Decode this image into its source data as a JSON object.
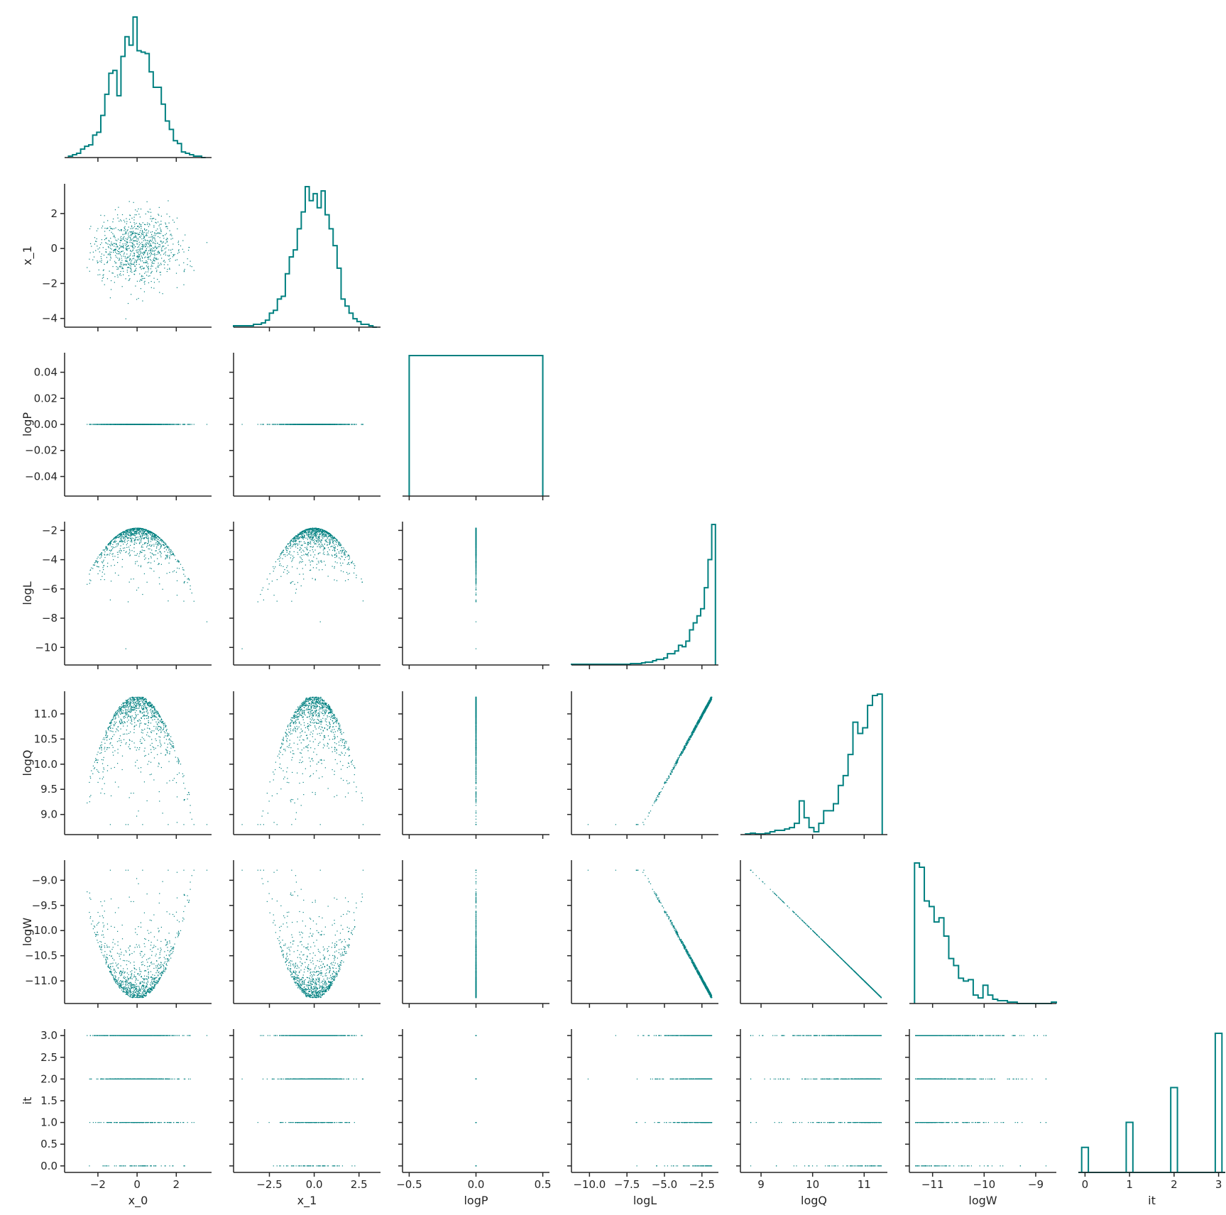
{
  "colors": {
    "accent": "#008080",
    "axis": "#262626",
    "background": "#ffffff"
  },
  "chart_data": {
    "type": "scatter",
    "layout": "corner-plot",
    "variables": [
      "x_0",
      "x_1",
      "logP",
      "logL",
      "logQ",
      "logW",
      "it"
    ],
    "axes": {
      "x_0": {
        "lim": [
          -3.7,
          3.8
        ],
        "ticks": [
          -2,
          0,
          2
        ],
        "tick_labels": [
          "−2",
          "0",
          "2"
        ]
      },
      "x_1": {
        "lim": [
          -4.5,
          3.7
        ],
        "ticks": [
          -4,
          -2,
          0,
          2
        ],
        "tick_labels": [
          "−4",
          "−2",
          "0",
          "2"
        ],
        "bottom_ticks": [
          -2.5,
          0.0,
          2.5
        ],
        "bottom_tick_labels": [
          "−2.5",
          "0.0",
          "2.5"
        ]
      },
      "logP": {
        "lim": [
          -0.055,
          0.055
        ],
        "ticks": [
          -0.04,
          -0.02,
          0.0,
          0.02,
          0.04
        ],
        "tick_labels": [
          "−0.04",
          "−0.02",
          "0.00",
          "0.02",
          "0.04"
        ],
        "bottom_lim": [
          -0.55,
          0.55
        ],
        "bottom_ticks": [
          -0.5,
          0.0,
          0.5
        ],
        "bottom_tick_labels": [
          "−0.5",
          "0.0",
          "0.5"
        ]
      },
      "logL": {
        "lim": [
          -11.2,
          -1.4
        ],
        "ticks": [
          -10,
          -8,
          -6,
          -4,
          -2
        ],
        "tick_labels": [
          "−10",
          "−8",
          "−6",
          "−4",
          "−2"
        ],
        "bottom_ticks": [
          -10.0,
          -7.5,
          -5.0,
          -2.5
        ],
        "bottom_tick_labels": [
          "−10.0",
          "−7.5",
          "−5.0",
          "−2.5"
        ]
      },
      "logQ": {
        "lim": [
          8.6,
          11.45
        ],
        "ticks": [
          9.0,
          9.5,
          10.0,
          10.5,
          11.0
        ],
        "tick_labels": [
          "9.0",
          "9.5",
          "10.0",
          "10.5",
          "11.0"
        ],
        "bottom_ticks": [
          9,
          10,
          11
        ],
        "bottom_tick_labels": [
          "9",
          "10",
          "11"
        ]
      },
      "logW": {
        "lim": [
          -11.45,
          -8.6
        ],
        "ticks": [
          -11.0,
          -10.5,
          -10.0,
          -9.5,
          -9.0
        ],
        "tick_labels": [
          "−11.0",
          "−10.5",
          "−10.0",
          "−9.5",
          "−9.0"
        ],
        "bottom_ticks": [
          -11,
          -10,
          -9
        ],
        "bottom_tick_labels": [
          "−11",
          "−10",
          "−9"
        ]
      },
      "it": {
        "lim": [
          -0.15,
          3.15
        ],
        "ticks": [
          0.0,
          0.5,
          1.0,
          1.5,
          2.0,
          2.5,
          3.0
        ],
        "tick_labels": [
          "0.0",
          "0.5",
          "1.0",
          "1.5",
          "2.0",
          "2.5",
          "3.0"
        ],
        "bottom_ticks": [
          0,
          1,
          2,
          3
        ],
        "bottom_tick_labels": [
          "0",
          "1",
          "2",
          "3"
        ]
      }
    },
    "histograms": {
      "x_0": {
        "range": [
          -3.5,
          3.5
        ],
        "counts": [
          1,
          2,
          3,
          6,
          8,
          9,
          16,
          18,
          30,
          45,
          60,
          62,
          44,
          72,
          86,
          80,
          100,
          76,
          75,
          74,
          61,
          50,
          50,
          38,
          26,
          20,
          12,
          10,
          4,
          3,
          2,
          1,
          1,
          0
        ]
      },
      "x_1": {
        "range": [
          -4.5,
          3.5
        ],
        "counts": [
          1,
          1,
          1,
          1,
          1,
          2,
          2,
          3,
          5,
          10,
          12,
          20,
          22,
          38,
          50,
          55,
          70,
          82,
          100,
          90,
          95,
          85,
          97,
          80,
          70,
          58,
          42,
          20,
          15,
          10,
          6,
          4,
          2,
          2,
          1,
          0
        ]
      },
      "logP": {
        "range": [
          -0.5,
          0.5
        ],
        "counts": [
          1
        ]
      },
      "logL": {
        "range": [
          -11.2,
          -1.6
        ],
        "counts": [
          0.5,
          0.5,
          0.5,
          0.5,
          0.5,
          0.5,
          0.5,
          0.5,
          0.5,
          0.5,
          0.5,
          0.5,
          0.5,
          0.5,
          0.5,
          0.5,
          1,
          1,
          1,
          1.5,
          2,
          2,
          3,
          4,
          4,
          5,
          8,
          8,
          10,
          14,
          13,
          17,
          25,
          30,
          35,
          40,
          55,
          75,
          100
        ]
      },
      "logQ": {
        "range": [
          8.7,
          11.35
        ],
        "counts": [
          0.5,
          1,
          0.5,
          0.5,
          1,
          2,
          3,
          3,
          4,
          5,
          8,
          24,
          12,
          5,
          2,
          8,
          17,
          17,
          22,
          35,
          42,
          57,
          80,
          72,
          76,
          92,
          99,
          100
        ]
      },
      "logW": {
        "range": [
          -11.35,
          -8.6
        ],
        "counts": [
          100,
          97,
          73,
          69,
          58,
          61,
          48,
          32,
          27,
          18,
          16,
          17,
          6,
          4,
          13,
          6,
          3,
          2,
          2,
          1,
          1,
          0,
          0,
          0,
          0,
          0,
          0,
          0,
          1
        ]
      },
      "it": {
        "range": [
          -0.15,
          3.15
        ],
        "bar_width": 0.15,
        "bars": [
          {
            "x": 0,
            "height": 0.18
          },
          {
            "x": 1,
            "height": 0.36
          },
          {
            "x": 2,
            "height": 0.61
          },
          {
            "x": 3,
            "height": 1.0
          }
        ]
      }
    }
  }
}
